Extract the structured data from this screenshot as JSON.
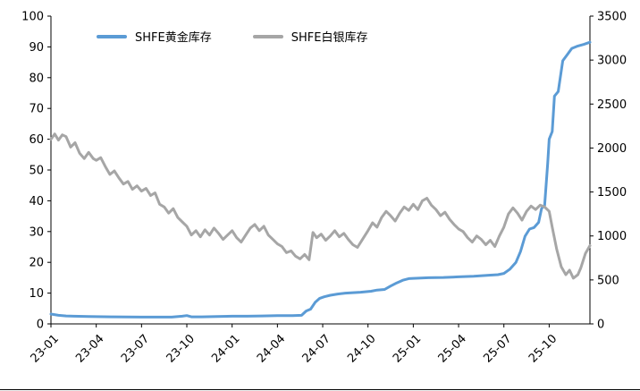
{
  "page": {
    "background": "#ffffff"
  },
  "chart_data": {
    "type": "line",
    "title": "",
    "legend_position": "top",
    "grid": false,
    "x_axis": {
      "range": [
        0,
        35.7
      ],
      "ticks": [
        {
          "pos": 0,
          "label": "23-01"
        },
        {
          "pos": 3,
          "label": "23-04"
        },
        {
          "pos": 6,
          "label": "23-07"
        },
        {
          "pos": 9,
          "label": "23-10"
        },
        {
          "pos": 12,
          "label": "24-01"
        },
        {
          "pos": 15,
          "label": "24-04"
        },
        {
          "pos": 18,
          "label": "24-07"
        },
        {
          "pos": 21,
          "label": "24-10"
        },
        {
          "pos": 24,
          "label": "25-01"
        },
        {
          "pos": 27,
          "label": "25-04"
        },
        {
          "pos": 30,
          "label": "25-07"
        },
        {
          "pos": 33,
          "label": "25-10"
        }
      ]
    },
    "y_left": {
      "range": [
        0,
        100
      ],
      "ticks": [
        0,
        10,
        20,
        30,
        40,
        50,
        60,
        70,
        80,
        90,
        100
      ]
    },
    "y_right": {
      "range": [
        0,
        3500
      ],
      "ticks": [
        0,
        500,
        1000,
        1500,
        2000,
        2500,
        3000,
        3500
      ]
    },
    "series": [
      {
        "name": "SHFE黄金库存",
        "axis": "left",
        "color": "#5B9BD5",
        "points": [
          [
            0,
            3.2
          ],
          [
            0.5,
            2.8
          ],
          [
            1,
            2.6
          ],
          [
            1.5,
            2.5
          ],
          [
            2.5,
            2.4
          ],
          [
            4,
            2.3
          ],
          [
            6,
            2.2
          ],
          [
            8,
            2.2
          ],
          [
            8.7,
            2.5
          ],
          [
            9,
            2.7
          ],
          [
            9.3,
            2.3
          ],
          [
            10,
            2.3
          ],
          [
            11,
            2.4
          ],
          [
            12,
            2.5
          ],
          [
            13,
            2.5
          ],
          [
            14,
            2.6
          ],
          [
            15,
            2.7
          ],
          [
            16,
            2.7
          ],
          [
            16.6,
            2.8
          ],
          [
            16.9,
            4.2
          ],
          [
            17.2,
            4.8
          ],
          [
            17.5,
            7.0
          ],
          [
            17.8,
            8.3
          ],
          [
            18.1,
            8.8
          ],
          [
            18.5,
            9.3
          ],
          [
            19,
            9.7
          ],
          [
            19.5,
            10.0
          ],
          [
            20.5,
            10.3
          ],
          [
            21.2,
            10.6
          ],
          [
            21.6,
            11.0
          ],
          [
            22.1,
            11.2
          ],
          [
            22.5,
            12.3
          ],
          [
            22.9,
            13.3
          ],
          [
            23.3,
            14.2
          ],
          [
            23.7,
            14.7
          ],
          [
            24,
            14.8
          ],
          [
            25,
            15.0
          ],
          [
            26,
            15.1
          ],
          [
            27,
            15.3
          ],
          [
            28,
            15.5
          ],
          [
            29,
            15.8
          ],
          [
            29.6,
            16.0
          ],
          [
            30,
            16.4
          ],
          [
            30.4,
            17.8
          ],
          [
            30.8,
            20.0
          ],
          [
            31.1,
            23.5
          ],
          [
            31.4,
            28.5
          ],
          [
            31.7,
            30.8
          ],
          [
            32.0,
            31.3
          ],
          [
            32.3,
            33.0
          ],
          [
            32.5,
            37.5
          ],
          [
            32.7,
            38.5
          ],
          [
            32.9,
            52.0
          ],
          [
            33.0,
            60.0
          ],
          [
            33.2,
            62.5
          ],
          [
            33.35,
            74.0
          ],
          [
            33.6,
            75.5
          ],
          [
            33.9,
            85.5
          ],
          [
            34.2,
            87.5
          ],
          [
            34.5,
            89.5
          ],
          [
            34.9,
            90.3
          ],
          [
            35.3,
            90.8
          ],
          [
            35.7,
            91.5
          ]
        ]
      },
      {
        "name": "SHFE白银库存",
        "axis": "right",
        "color": "#A6A6A6",
        "points": [
          [
            0,
            2100
          ],
          [
            0.25,
            2160
          ],
          [
            0.5,
            2090
          ],
          [
            0.75,
            2150
          ],
          [
            1,
            2130
          ],
          [
            1.3,
            2010
          ],
          [
            1.6,
            2060
          ],
          [
            1.9,
            1940
          ],
          [
            2.2,
            1880
          ],
          [
            2.5,
            1950
          ],
          [
            2.8,
            1880
          ],
          [
            3,
            1860
          ],
          [
            3.3,
            1890
          ],
          [
            3.6,
            1790
          ],
          [
            3.9,
            1700
          ],
          [
            4.2,
            1740
          ],
          [
            4.5,
            1660
          ],
          [
            4.8,
            1590
          ],
          [
            5.1,
            1620
          ],
          [
            5.4,
            1530
          ],
          [
            5.7,
            1570
          ],
          [
            6,
            1510
          ],
          [
            6.3,
            1540
          ],
          [
            6.6,
            1460
          ],
          [
            6.9,
            1490
          ],
          [
            7.2,
            1360
          ],
          [
            7.5,
            1330
          ],
          [
            7.8,
            1260
          ],
          [
            8.1,
            1310
          ],
          [
            8.4,
            1210
          ],
          [
            8.7,
            1160
          ],
          [
            9,
            1110
          ],
          [
            9.3,
            1010
          ],
          [
            9.6,
            1060
          ],
          [
            9.9,
            990
          ],
          [
            10.2,
            1070
          ],
          [
            10.5,
            1010
          ],
          [
            10.8,
            1090
          ],
          [
            11.1,
            1030
          ],
          [
            11.4,
            960
          ],
          [
            11.7,
            1010
          ],
          [
            12,
            1060
          ],
          [
            12.3,
            980
          ],
          [
            12.6,
            930
          ],
          [
            12.9,
            1010
          ],
          [
            13.2,
            1090
          ],
          [
            13.5,
            1130
          ],
          [
            13.8,
            1060
          ],
          [
            14.1,
            1110
          ],
          [
            14.4,
            1010
          ],
          [
            14.7,
            960
          ],
          [
            15,
            910
          ],
          [
            15.3,
            880
          ],
          [
            15.6,
            810
          ],
          [
            15.9,
            830
          ],
          [
            16.2,
            770
          ],
          [
            16.5,
            740
          ],
          [
            16.8,
            790
          ],
          [
            17.1,
            730
          ],
          [
            17.35,
            1040
          ],
          [
            17.6,
            980
          ],
          [
            17.9,
            1020
          ],
          [
            18.2,
            950
          ],
          [
            18.5,
            1000
          ],
          [
            18.8,
            1060
          ],
          [
            19.1,
            990
          ],
          [
            19.4,
            1030
          ],
          [
            19.7,
            960
          ],
          [
            20,
            900
          ],
          [
            20.3,
            870
          ],
          [
            20.6,
            950
          ],
          [
            21,
            1060
          ],
          [
            21.3,
            1150
          ],
          [
            21.6,
            1100
          ],
          [
            21.9,
            1210
          ],
          [
            22.2,
            1280
          ],
          [
            22.5,
            1230
          ],
          [
            22.8,
            1170
          ],
          [
            23.1,
            1260
          ],
          [
            23.4,
            1330
          ],
          [
            23.7,
            1290
          ],
          [
            24,
            1360
          ],
          [
            24.3,
            1300
          ],
          [
            24.6,
            1400
          ],
          [
            24.9,
            1430
          ],
          [
            25.2,
            1350
          ],
          [
            25.5,
            1300
          ],
          [
            25.8,
            1230
          ],
          [
            26.1,
            1270
          ],
          [
            26.4,
            1190
          ],
          [
            26.7,
            1130
          ],
          [
            27,
            1080
          ],
          [
            27.3,
            1050
          ],
          [
            27.6,
            980
          ],
          [
            27.9,
            930
          ],
          [
            28.2,
            1000
          ],
          [
            28.5,
            960
          ],
          [
            28.8,
            900
          ],
          [
            29.1,
            950
          ],
          [
            29.4,
            880
          ],
          [
            29.7,
            1000
          ],
          [
            30,
            1100
          ],
          [
            30.3,
            1250
          ],
          [
            30.6,
            1320
          ],
          [
            30.9,
            1260
          ],
          [
            31.2,
            1180
          ],
          [
            31.5,
            1280
          ],
          [
            31.8,
            1340
          ],
          [
            32.1,
            1300
          ],
          [
            32.4,
            1350
          ],
          [
            32.7,
            1330
          ],
          [
            33,
            1280
          ],
          [
            33.2,
            1100
          ],
          [
            33.5,
            850
          ],
          [
            33.8,
            650
          ],
          [
            34.1,
            560
          ],
          [
            34.35,
            610
          ],
          [
            34.6,
            520
          ],
          [
            34.9,
            560
          ],
          [
            35.1,
            640
          ],
          [
            35.4,
            800
          ],
          [
            35.7,
            890
          ]
        ]
      }
    ]
  }
}
